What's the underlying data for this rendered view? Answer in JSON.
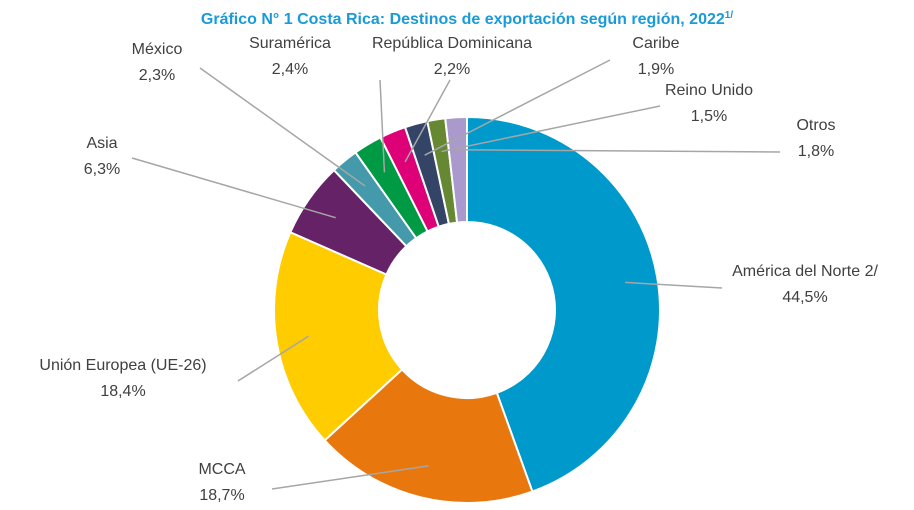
{
  "chart_data": {
    "type": "donut",
    "title": "Gráfico N° 1 Costa Rica: Destinos de exportación según región, 2022",
    "title_note": "1/",
    "categories": [
      "América del Norte 2/",
      "MCCA",
      "Unión Europea (UE-26)",
      "Asia",
      "México",
      "Suramérica",
      "República Dominicana",
      "Caribe",
      "Reino Unido",
      "Otros"
    ],
    "values": [
      44.5,
      18.7,
      18.4,
      6.3,
      2.3,
      2.4,
      2.2,
      1.9,
      1.5,
      1.8
    ],
    "value_labels": [
      "44,5%",
      "18,7%",
      "18,4%",
      "6,3%",
      "2,3%",
      "2,4%",
      "2,2%",
      "1,9%",
      "1,5%",
      "1,8%"
    ],
    "colors": [
      "#0099cc",
      "#e8770e",
      "#ffcc00",
      "#662266",
      "#4499aa",
      "#009944",
      "#dd0077",
      "#334466",
      "#668833",
      "#aa99cc"
    ]
  }
}
